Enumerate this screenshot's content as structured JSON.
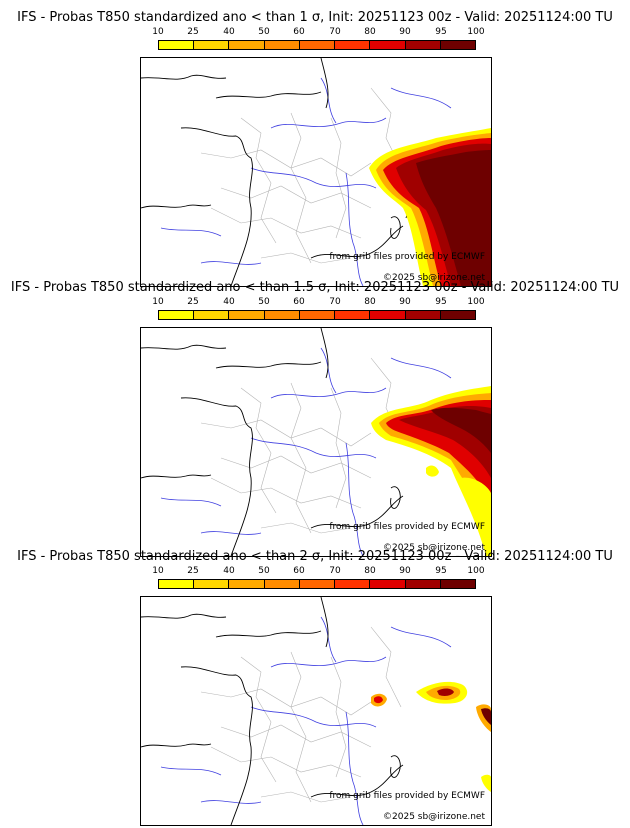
{
  "colorbar": {
    "labels": [
      "10",
      "25",
      "40",
      "50",
      "60",
      "70",
      "80",
      "90",
      "95",
      "100"
    ],
    "colors": [
      "#ffff00",
      "#ffd700",
      "#ffaa00",
      "#ff8c00",
      "#ff6600",
      "#ff3300",
      "#e00000",
      "#a00000",
      "#6e0000"
    ]
  },
  "credits": {
    "source": "from grib files provided by ECMWF",
    "copyright": "©2025 sb@irizone.net"
  },
  "panels": [
    {
      "title": "IFS - Probas T850  standardized ano < than 1 σ, Init: 20251123 00z - Valid: 20251124:00 TU",
      "threshold_sigma": 1
    },
    {
      "title": "IFS - Probas T850  standardized ano < than 1.5 σ, Init: 20251123 00z - Valid: 20251124:00 TU",
      "threshold_sigma": 1.5
    },
    {
      "title": "IFS - Probas T850  standardized ano < than 2 σ, Init: 20251123 00z - Valid: 20251124:00 TU",
      "threshold_sigma": 2
    }
  ]
}
